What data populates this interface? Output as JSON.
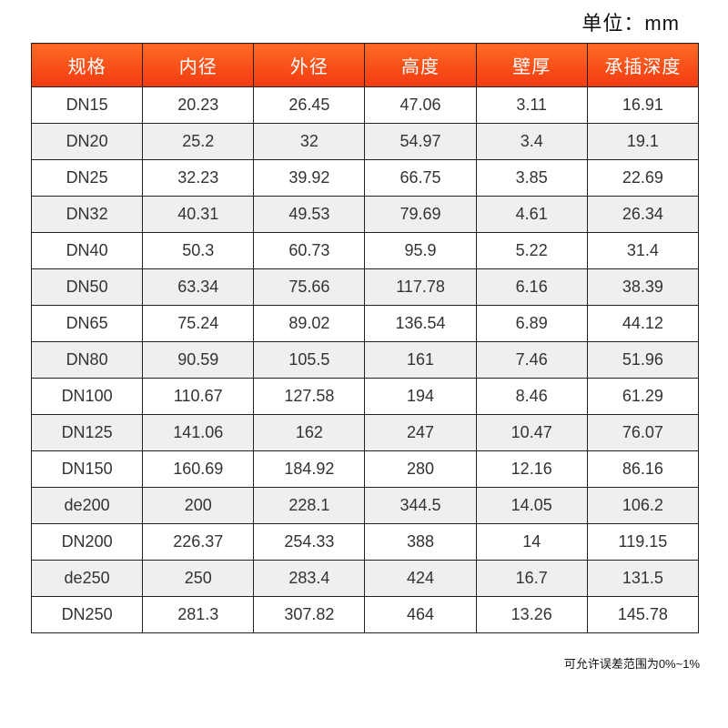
{
  "unit_label": "单位：mm",
  "table": {
    "headers": [
      "规格",
      "内径",
      "外径",
      "高度",
      "壁厚",
      "承插深度"
    ],
    "rows": [
      [
        "DN15",
        "20.23",
        "26.45",
        "47.06",
        "3.11",
        "16.91"
      ],
      [
        "DN20",
        "25.2",
        "32",
        "54.97",
        "3.4",
        "19.1"
      ],
      [
        "DN25",
        "32.23",
        "39.92",
        "66.75",
        "3.85",
        "22.69"
      ],
      [
        "DN32",
        "40.31",
        "49.53",
        "79.69",
        "4.61",
        "26.34"
      ],
      [
        "DN40",
        "50.3",
        "60.73",
        "95.9",
        "5.22",
        "31.4"
      ],
      [
        "DN50",
        "63.34",
        "75.66",
        "117.78",
        "6.16",
        "38.39"
      ],
      [
        "DN65",
        "75.24",
        "89.02",
        "136.54",
        "6.89",
        "44.12"
      ],
      [
        "DN80",
        "90.59",
        "105.5",
        "161",
        "7.46",
        "51.96"
      ],
      [
        "DN100",
        "110.67",
        "127.58",
        "194",
        "8.46",
        "61.29"
      ],
      [
        "DN125",
        "141.06",
        "162",
        "247",
        "10.47",
        "76.07"
      ],
      [
        "DN150",
        "160.69",
        "184.92",
        "280",
        "12.16",
        "86.16"
      ],
      [
        "de200",
        "200",
        "228.1",
        "344.5",
        "14.05",
        "106.2"
      ],
      [
        "DN200",
        "226.37",
        "254.33",
        "388",
        "14",
        "119.15"
      ],
      [
        "de250",
        "250",
        "283.4",
        "424",
        "16.7",
        "131.5"
      ],
      [
        "DN250",
        "281.3",
        "307.82",
        "464",
        "13.26",
        "145.78"
      ]
    ]
  },
  "footnote": "可允许误差范围为0%~1%",
  "colors": {
    "header_gradient_top": "#ff6a23",
    "header_gradient_bottom": "#f23a12",
    "stripe": "#efefef"
  }
}
